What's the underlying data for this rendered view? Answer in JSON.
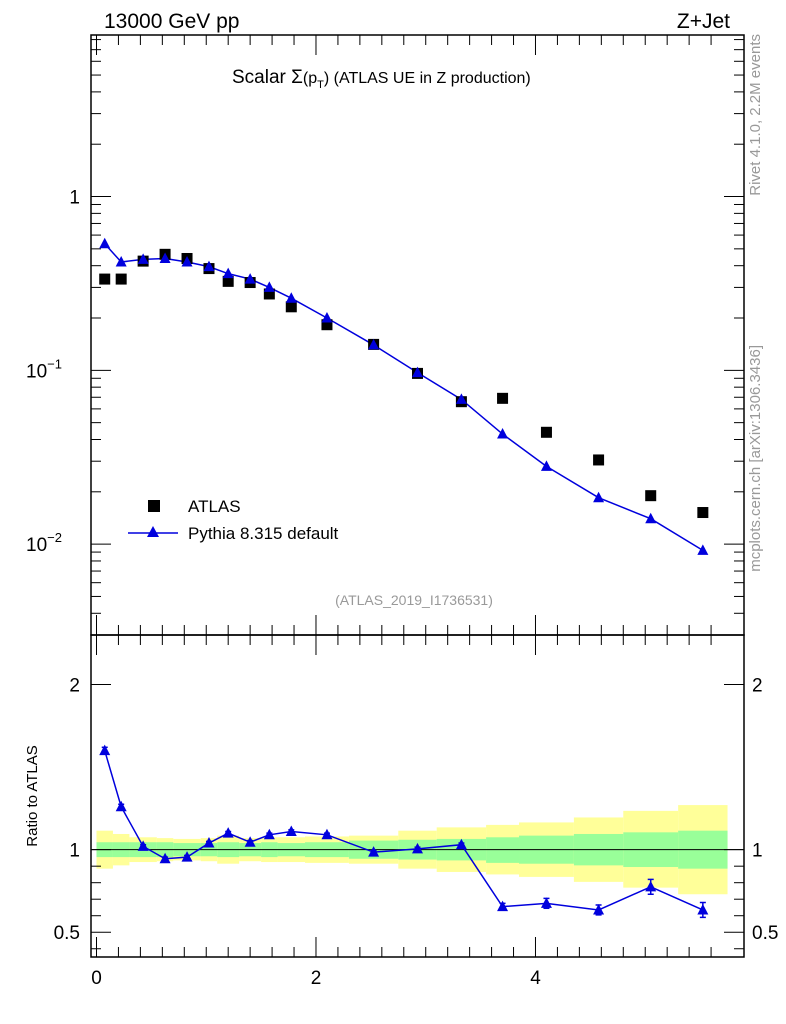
{
  "header": {
    "left": "13000 GeV pp",
    "right": "Z+Jet"
  },
  "side": {
    "rivet": "Rivet 4.1.0,  2.2M events",
    "mcplots": "mcplots.cern.ch [arXiv:1306.3436]"
  },
  "analysis_id": "(ATLAS_2019_I1736531)",
  "colors": {
    "mc": "#0000dd",
    "data": "#000000",
    "band_inner": "#99ff99",
    "band_outer": "#ffff99",
    "source_id": "#999999"
  },
  "chart_data": [
    {
      "type": "scatter",
      "title_parts": {
        "prefix": "Scalar ",
        "sigma": "Σ",
        "open": "(p",
        "sub": "T",
        "close": ")",
        "rest": " (ATLAS UE in Z production)"
      },
      "yscale": "log",
      "xlim": [
        -0.05,
        5.9
      ],
      "ylim": [
        0.003,
        8.5
      ],
      "yticks": [
        {
          "value": 1,
          "base": "1",
          "exp": ""
        },
        {
          "value": 0.1,
          "base": "10",
          "exp": "−1"
        },
        {
          "value": 0.01,
          "base": "10",
          "exp": "−2"
        }
      ],
      "legend": {
        "position": "bottom-left",
        "entries": [
          "ATLAS",
          "Pythia 8.315 default"
        ]
      },
      "x": [
        0.075,
        0.225,
        0.425,
        0.625,
        0.825,
        1.025,
        1.2,
        1.4,
        1.575,
        1.775,
        2.1,
        2.525,
        2.925,
        3.325,
        3.7,
        4.1,
        4.575,
        5.05,
        5.525
      ],
      "series": [
        {
          "name": "ATLAS",
          "marker": "square",
          "values": [
            0.335,
            0.335,
            0.425,
            0.465,
            0.44,
            0.385,
            0.325,
            0.32,
            0.275,
            0.232,
            0.183,
            0.141,
            0.096,
            0.066,
            0.069,
            0.044,
            0.0305,
            0.019,
            0.0152
          ]
        },
        {
          "name": "Pythia 8.315 default",
          "marker": "triangle",
          "values": [
            0.535,
            0.42,
            0.435,
            0.44,
            0.42,
            0.395,
            0.36,
            0.335,
            0.3,
            0.26,
            0.2,
            0.14,
            0.097,
            0.068,
            0.043,
            0.028,
            0.0185,
            0.014,
            0.0092
          ]
        }
      ]
    },
    {
      "type": "line",
      "ylabel": "Ratio to ATLAS",
      "xlim": [
        -0.05,
        5.9
      ],
      "ylim": [
        0.35,
        2.3
      ],
      "xticks": [
        "0",
        "2",
        "4"
      ],
      "xtick_values": [
        0,
        2,
        4
      ],
      "yticks": [
        "0.5",
        "1",
        "2"
      ],
      "ytick_values": [
        0.5,
        1,
        2
      ],
      "bin_edges": [
        0.0,
        0.15,
        0.3,
        0.55,
        0.7,
        0.95,
        1.1,
        1.3,
        1.5,
        1.65,
        1.9,
        2.3,
        2.75,
        3.1,
        3.55,
        3.85,
        4.35,
        4.8,
        5.3,
        5.75
      ],
      "band_inner_lo": [
        0.955,
        0.955,
        0.955,
        0.955,
        0.96,
        0.96,
        0.955,
        0.96,
        0.955,
        0.96,
        0.955,
        0.945,
        0.94,
        0.935,
        0.92,
        0.915,
        0.905,
        0.895,
        0.885
      ],
      "band_inner_hi": [
        1.045,
        1.045,
        1.045,
        1.045,
        1.04,
        1.04,
        1.045,
        1.04,
        1.045,
        1.04,
        1.045,
        1.055,
        1.06,
        1.065,
        1.075,
        1.085,
        1.095,
        1.105,
        1.115
      ],
      "band_outer_lo": [
        0.885,
        0.905,
        0.925,
        0.93,
        0.935,
        0.93,
        0.915,
        0.93,
        0.925,
        0.925,
        0.92,
        0.915,
        0.885,
        0.865,
        0.85,
        0.835,
        0.805,
        0.77,
        0.73
      ],
      "band_outer_hi": [
        1.115,
        1.095,
        1.075,
        1.07,
        1.065,
        1.07,
        1.085,
        1.07,
        1.075,
        1.075,
        1.08,
        1.085,
        1.115,
        1.135,
        1.15,
        1.165,
        1.195,
        1.235,
        1.27
      ],
      "x": [
        0.075,
        0.225,
        0.425,
        0.625,
        0.825,
        1.025,
        1.2,
        1.4,
        1.575,
        1.775,
        2.1,
        2.525,
        2.925,
        3.325,
        3.7,
        4.1,
        4.575,
        5.05,
        5.525
      ],
      "series": [
        {
          "name": "Pythia 8.315 default / ATLAS",
          "values": [
            1.6,
            1.26,
            1.02,
            0.945,
            0.955,
            1.04,
            1.1,
            1.045,
            1.09,
            1.11,
            1.09,
            0.985,
            1.005,
            1.03,
            0.655,
            0.675,
            0.635,
            0.775,
            0.635
          ],
          "errors": [
            0.02,
            0.015,
            0.01,
            0.01,
            0.01,
            0.01,
            0.01,
            0.01,
            0.01,
            0.01,
            0.01,
            0.01,
            0.01,
            0.01,
            0.02,
            0.03,
            0.03,
            0.045,
            0.045
          ]
        }
      ]
    }
  ]
}
